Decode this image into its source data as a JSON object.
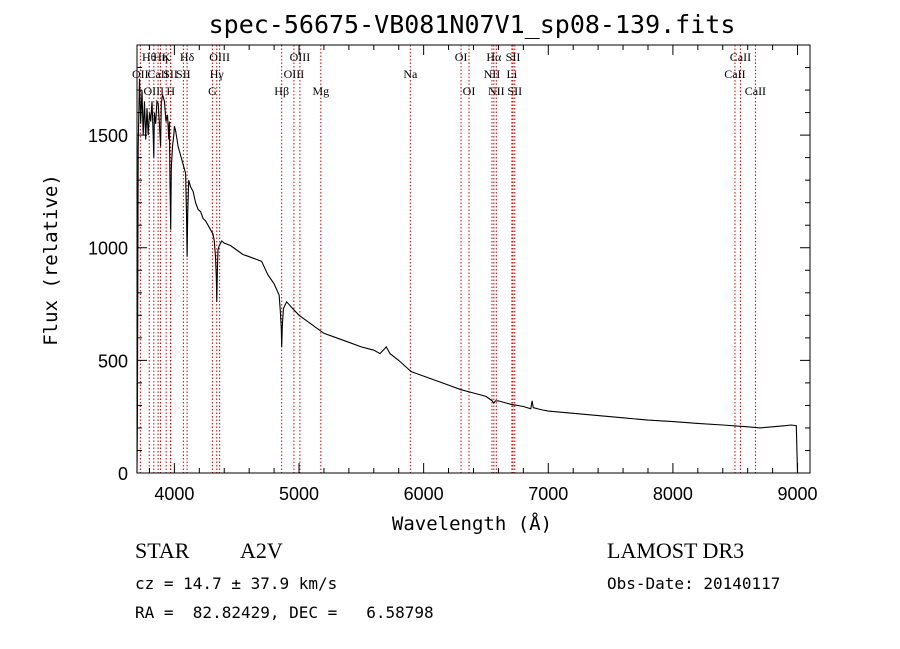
{
  "chart_data": {
    "type": "line",
    "title": "spec-56675-VB081N07V1_sp08-139.fits",
    "xlabel": "Wavelength (Å)",
    "ylabel": "Flux (relative)",
    "xlim": [
      3700,
      9100
    ],
    "ylim": [
      0,
      1900
    ],
    "xticks": [
      4000,
      5000,
      6000,
      7000,
      8000,
      9000
    ],
    "yticks": [
      0,
      500,
      1000,
      1500
    ],
    "series": [
      {
        "name": "spectrum",
        "points": [
          [
            3700,
            0
          ],
          [
            3703,
            230
          ],
          [
            3710,
            1450
          ],
          [
            3720,
            1750
          ],
          [
            3730,
            1550
          ],
          [
            3740,
            1700
          ],
          [
            3750,
            1500
          ],
          [
            3760,
            1650
          ],
          [
            3770,
            1480
          ],
          [
            3780,
            1620
          ],
          [
            3790,
            1500
          ],
          [
            3800,
            1600
          ],
          [
            3810,
            1560
          ],
          [
            3820,
            1650
          ],
          [
            3830,
            1500
          ],
          [
            3835,
            1400
          ],
          [
            3840,
            1600
          ],
          [
            3850,
            1550
          ],
          [
            3860,
            1650
          ],
          [
            3870,
            1640
          ],
          [
            3880,
            1550
          ],
          [
            3889,
            1450
          ],
          [
            3895,
            1640
          ],
          [
            3905,
            1680
          ],
          [
            3920,
            1650
          ],
          [
            3933,
            1560
          ],
          [
            3945,
            1590
          ],
          [
            3955,
            1480
          ],
          [
            3960,
            1560
          ],
          [
            3964,
            1320
          ],
          [
            3970,
            1080
          ],
          [
            3975,
            1350
          ],
          [
            3985,
            1450
          ],
          [
            3995,
            1500
          ],
          [
            4000,
            1540
          ],
          [
            4010,
            1520
          ],
          [
            4030,
            1450
          ],
          [
            4050,
            1410
          ],
          [
            4070,
            1370
          ],
          [
            4090,
            1330
          ],
          [
            4097,
            1150
          ],
          [
            4102,
            960
          ],
          [
            4107,
            1150
          ],
          [
            4115,
            1300
          ],
          [
            4130,
            1270
          ],
          [
            4150,
            1250
          ],
          [
            4170,
            1200
          ],
          [
            4190,
            1170
          ],
          [
            4210,
            1160
          ],
          [
            4230,
            1130
          ],
          [
            4250,
            1120
          ],
          [
            4270,
            1100
          ],
          [
            4290,
            1080
          ],
          [
            4310,
            1060
          ],
          [
            4320,
            1030
          ],
          [
            4330,
            960
          ],
          [
            4336,
            870
          ],
          [
            4340,
            760
          ],
          [
            4345,
            900
          ],
          [
            4350,
            990
          ],
          [
            4360,
            1010
          ],
          [
            4380,
            1030
          ],
          [
            4400,
            1020
          ],
          [
            4450,
            1010
          ],
          [
            4500,
            990
          ],
          [
            4550,
            970
          ],
          [
            4600,
            960
          ],
          [
            4650,
            950
          ],
          [
            4700,
            940
          ],
          [
            4750,
            880
          ],
          [
            4800,
            840
          ],
          [
            4840,
            790
          ],
          [
            4850,
            720
          ],
          [
            4858,
            640
          ],
          [
            4861,
            560
          ],
          [
            4866,
            650
          ],
          [
            4875,
            730
          ],
          [
            4900,
            760
          ],
          [
            4950,
            730
          ],
          [
            5000,
            700
          ],
          [
            5050,
            680
          ],
          [
            5100,
            660
          ],
          [
            5150,
            640
          ],
          [
            5200,
            620
          ],
          [
            5300,
            600
          ],
          [
            5400,
            580
          ],
          [
            5500,
            560
          ],
          [
            5600,
            545
          ],
          [
            5650,
            530
          ],
          [
            5700,
            560
          ],
          [
            5730,
            530
          ],
          [
            5800,
            500
          ],
          [
            5880,
            460
          ],
          [
            5900,
            450
          ],
          [
            6000,
            430
          ],
          [
            6100,
            410
          ],
          [
            6200,
            390
          ],
          [
            6300,
            370
          ],
          [
            6400,
            355
          ],
          [
            6500,
            340
          ],
          [
            6550,
            320
          ],
          [
            6563,
            310
          ],
          [
            6575,
            320
          ],
          [
            6600,
            320
          ],
          [
            6700,
            305
          ],
          [
            6800,
            295
          ],
          [
            6860,
            285
          ],
          [
            6870,
            320
          ],
          [
            6880,
            290
          ],
          [
            6950,
            280
          ],
          [
            7000,
            275
          ],
          [
            7200,
            265
          ],
          [
            7400,
            255
          ],
          [
            7600,
            245
          ],
          [
            7800,
            235
          ],
          [
            8000,
            228
          ],
          [
            8200,
            220
          ],
          [
            8400,
            213
          ],
          [
            8600,
            205
          ],
          [
            8700,
            200
          ],
          [
            8800,
            205
          ],
          [
            8900,
            210
          ],
          [
            8950,
            213
          ],
          [
            8990,
            210
          ],
          [
            9000,
            0
          ]
        ]
      }
    ],
    "lines": [
      {
        "label": "OII",
        "wavelength": 3727,
        "row": 2
      },
      {
        "label": "Hθ",
        "wavelength": 3798,
        "row": 1
      },
      {
        "label": "OIII",
        "wavelength": 3835,
        "row": 3
      },
      {
        "label": "Hη",
        "wavelength": 3889,
        "row": 1
      },
      {
        "label": "CaII",
        "wavelength": 3869,
        "row": 2
      },
      {
        "label": "K",
        "wavelength": 3934,
        "row": 1
      },
      {
        "label": "SII",
        "wavelength": 3969,
        "row": 2
      },
      {
        "label": "H",
        "wavelength": 3970,
        "row": 3
      },
      {
        "label": "Hδ",
        "wavelength": 4102,
        "row": 1
      },
      {
        "label": "SII",
        "wavelength": 4072,
        "row": 2
      },
      {
        "label": "OIII",
        "wavelength": 4363,
        "row": 1
      },
      {
        "label": "Hγ",
        "wavelength": 4340,
        "row": 2
      },
      {
        "label": "G",
        "wavelength": 4305,
        "row": 3
      },
      {
        "label": "Hβ",
        "wavelength": 4861,
        "row": 3
      },
      {
        "label": "OIII",
        "wavelength": 5007,
        "row": 1
      },
      {
        "label": "OIII",
        "wavelength": 4959,
        "row": 2
      },
      {
        "label": "Mg",
        "wavelength": 5175,
        "row": 3
      },
      {
        "label": "Na",
        "wavelength": 5893,
        "row": 2
      },
      {
        "label": "OI",
        "wavelength": 6300,
        "row": 1
      },
      {
        "label": "OI",
        "wavelength": 6364,
        "row": 3
      },
      {
        "label": "Hα",
        "wavelength": 6563,
        "row": 1
      },
      {
        "label": "NII",
        "wavelength": 6548,
        "row": 2
      },
      {
        "label": "NII",
        "wavelength": 6583,
        "row": 3
      },
      {
        "label": "SII",
        "wavelength": 6717,
        "row": 1
      },
      {
        "label": "Li",
        "wavelength": 6708,
        "row": 2
      },
      {
        "label": "SII",
        "wavelength": 6731,
        "row": 3
      },
      {
        "label": "CaII",
        "wavelength": 8542,
        "row": 1
      },
      {
        "label": "CaII",
        "wavelength": 8498,
        "row": 2
      },
      {
        "label": "CaII",
        "wavelength": 8662,
        "row": 3
      }
    ],
    "grid": false,
    "legend": "none"
  },
  "info": {
    "class": "STAR",
    "subclass": "A2V",
    "survey": "LAMOST DR3",
    "redshift": "cz = 14.7 ± 37.9 km/s",
    "obs_date": "Obs-Date: 20140117",
    "coords": "RA =  82.82429, DEC =   6.58798"
  },
  "colors": {
    "spectrum": "#000000",
    "line_marker": "#cc0000",
    "axes": "#000000"
  }
}
